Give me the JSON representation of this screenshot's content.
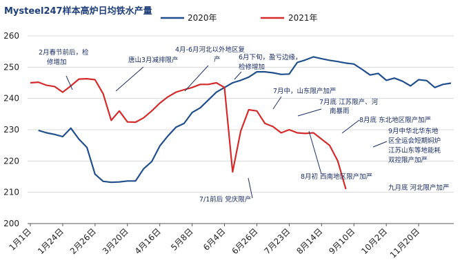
{
  "chart_data": {
    "type": "line",
    "title": "Mysteel247样本高炉日均铁水产量",
    "ylim": [
      200,
      260
    ],
    "yticks": [
      200,
      210,
      220,
      230,
      240,
      250,
      260
    ],
    "xlim": [
      0,
      52
    ],
    "xtick_labels": [
      "1月1日",
      "1月24日",
      "2月26日",
      "3月20日",
      "4月16日",
      "5月8日",
      "6月4日",
      "6月26日",
      "7月23日",
      "8月14日",
      "9月10日",
      "10月2日",
      "11月20日"
    ],
    "xtick_positions": [
      0,
      4,
      8,
      12,
      16,
      20,
      24,
      28,
      32,
      36,
      40,
      44,
      48
    ],
    "grid": "horizontal",
    "legend_position": "top",
    "series": [
      {
        "name": "2020年",
        "color": "#1f4e8c",
        "points": [
          [
            1,
            229.8
          ],
          [
            2,
            229.0
          ],
          [
            3,
            228.5
          ],
          [
            4,
            227.8
          ],
          [
            5,
            230.5
          ],
          [
            6,
            227.0
          ],
          [
            7,
            224.3
          ],
          [
            8,
            215.8
          ],
          [
            9,
            213.5
          ],
          [
            10,
            213.2
          ],
          [
            11,
            213.3
          ],
          [
            12,
            213.6
          ],
          [
            13,
            213.6
          ],
          [
            14,
            217.5
          ],
          [
            15,
            219.8
          ],
          [
            16,
            224.8
          ],
          [
            17,
            228.0
          ],
          [
            18,
            230.8
          ],
          [
            19,
            232.0
          ],
          [
            20,
            235.5
          ],
          [
            21,
            237.0
          ],
          [
            22,
            239.5
          ],
          [
            23,
            242.0
          ],
          [
            24,
            243.5
          ],
          [
            25,
            245.0
          ],
          [
            26,
            245.8
          ],
          [
            27,
            246.8
          ],
          [
            28,
            248.5
          ],
          [
            29,
            248.5
          ],
          [
            30,
            248.2
          ],
          [
            31,
            247.7
          ],
          [
            32,
            247.8
          ],
          [
            33,
            251.5
          ],
          [
            34,
            252.3
          ],
          [
            35,
            253.3
          ],
          [
            36,
            252.7
          ],
          [
            37,
            252.2
          ],
          [
            38,
            251.8
          ],
          [
            39,
            251.3
          ],
          [
            40,
            251.0
          ],
          [
            41,
            249.3
          ],
          [
            42,
            247.5
          ],
          [
            43,
            248.0
          ],
          [
            44,
            245.8
          ],
          [
            45,
            246.5
          ],
          [
            46,
            245.5
          ],
          [
            47,
            244.0
          ],
          [
            48,
            246.0
          ],
          [
            49,
            245.7
          ],
          [
            50,
            243.5
          ],
          [
            51,
            244.5
          ],
          [
            52,
            244.9
          ]
        ]
      },
      {
        "name": "2021年",
        "color": "#d42a2a",
        "points": [
          [
            0,
            245.0
          ],
          [
            1,
            245.2
          ],
          [
            2,
            244.2
          ],
          [
            3,
            243.8
          ],
          [
            4,
            242.0
          ],
          [
            5,
            244.0
          ],
          [
            6,
            246.2
          ],
          [
            7,
            246.3
          ],
          [
            8,
            246.0
          ],
          [
            9,
            241.5
          ],
          [
            10,
            233.0
          ],
          [
            11,
            236.0
          ],
          [
            12,
            232.5
          ],
          [
            13,
            232.4
          ],
          [
            14,
            233.8
          ],
          [
            15,
            236.0
          ],
          [
            16,
            238.5
          ],
          [
            17,
            240.5
          ],
          [
            18,
            242.0
          ],
          [
            19,
            242.8
          ],
          [
            20,
            243.5
          ],
          [
            21,
            244.5
          ],
          [
            22,
            244.5
          ],
          [
            23,
            245.0
          ],
          [
            24,
            243.5
          ],
          [
            25,
            216.5
          ],
          [
            26,
            229.5
          ],
          [
            27,
            236.4
          ],
          [
            28,
            236.0
          ],
          [
            29,
            232.0
          ],
          [
            30,
            231.0
          ],
          [
            31,
            229.0
          ],
          [
            32,
            230.0
          ],
          [
            33,
            229.0
          ],
          [
            34,
            228.8
          ],
          [
            35,
            229.0
          ],
          [
            36,
            227.0
          ],
          [
            37,
            225.0
          ],
          [
            38,
            220.0
          ],
          [
            39,
            211.0
          ]
        ]
      }
    ],
    "annotations": [
      [
        "2月春节前后，检",
        "修增加"
      ],
      [
        "唐山3月减排限产"
      ],
      [
        "4月-6月河北以外地区复",
        "产"
      ],
      [
        "6月下旬，盈亏边缘，",
        "检修增加"
      ],
      [
        "7月中，山东限产加严"
      ],
      [
        "7月底 江苏限产、河",
        "南暴雨"
      ],
      [
        "8月底 东北地区限产加严"
      ],
      [
        "9月中华北华东地",
        "区全运会短期焖炉",
        "江苏山东等地能耗",
        "双控限产加严"
      ],
      [
        "8月初 西南地区限产加严"
      ],
      [
        "7/1前后 党庆限产"
      ],
      [
        "九月底 河北限产加严"
      ]
    ]
  }
}
